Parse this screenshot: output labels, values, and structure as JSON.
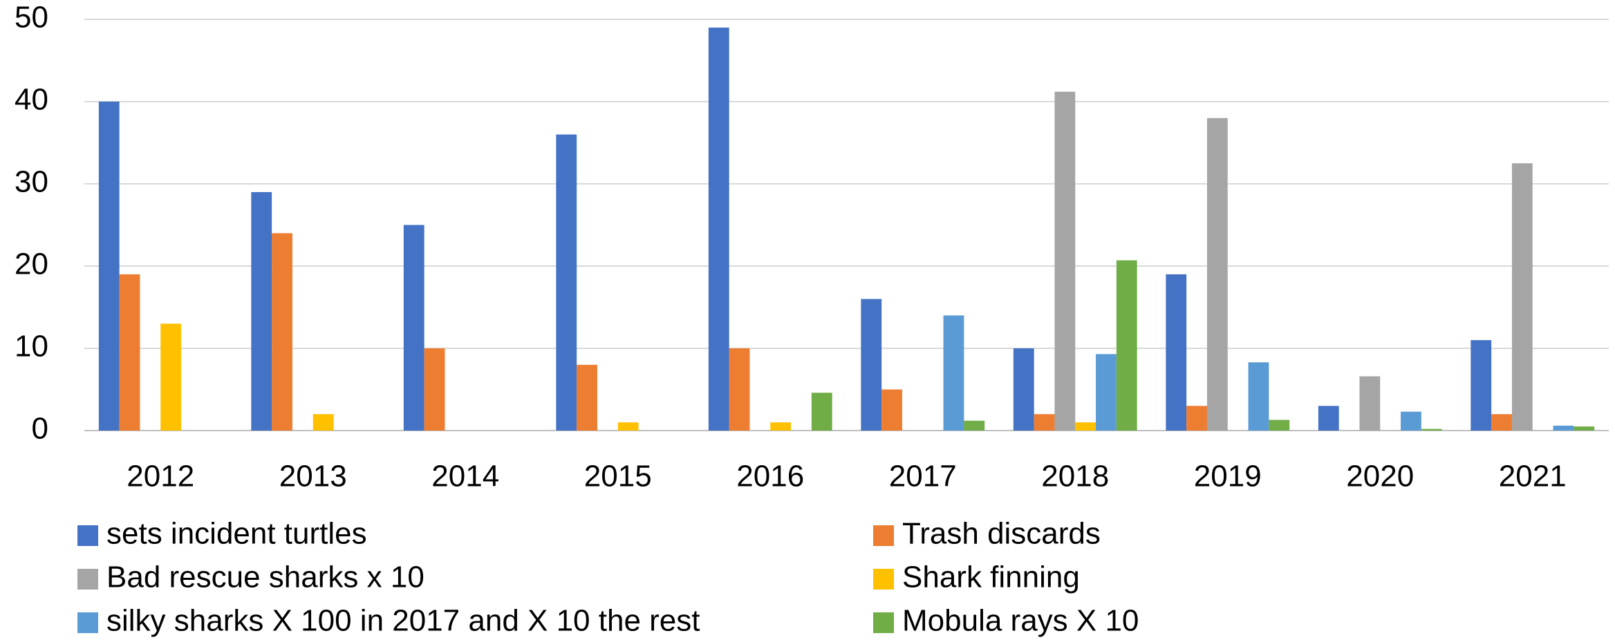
{
  "chart_data": {
    "type": "bar",
    "categories": [
      "2012",
      "2013",
      "2014",
      "2015",
      "2016",
      "2017",
      "2018",
      "2019",
      "2020",
      "2021"
    ],
    "series": [
      {
        "name": "sets incident turtles",
        "color": "#4472c4",
        "values": [
          40,
          29,
          25,
          36,
          49,
          16,
          10,
          19,
          3,
          11
        ]
      },
      {
        "name": "Trash discards",
        "color": "#ed7d31",
        "values": [
          19,
          24,
          10,
          8,
          10,
          5,
          2,
          3,
          0,
          2
        ]
      },
      {
        "name": "Bad rescue sharks x 10",
        "color": "#a5a5a5",
        "values": [
          0,
          0,
          0,
          0,
          0,
          0,
          41.2,
          38,
          6.6,
          32.5
        ]
      },
      {
        "name": "Shark finning",
        "color": "#ffc000",
        "values": [
          13,
          2,
          0,
          1,
          1,
          0,
          1,
          0,
          0,
          0
        ]
      },
      {
        "name": "silky sharks X 100 in 2017 and X 10 the rest",
        "color": "#5b9bd5",
        "values": [
          0,
          0,
          0,
          0,
          0,
          14,
          9.3,
          8.3,
          2.3,
          0.6
        ]
      },
      {
        "name": "Mobula rays X 10",
        "color": "#70ad47",
        "values": [
          0,
          0,
          0,
          0,
          4.6,
          1.2,
          20.7,
          1.3,
          0.2,
          0.5
        ]
      }
    ],
    "ylim": [
      0,
      50
    ],
    "yticks": [
      0,
      10,
      20,
      30,
      40,
      50
    ],
    "grid": true,
    "legend": "bottom"
  }
}
